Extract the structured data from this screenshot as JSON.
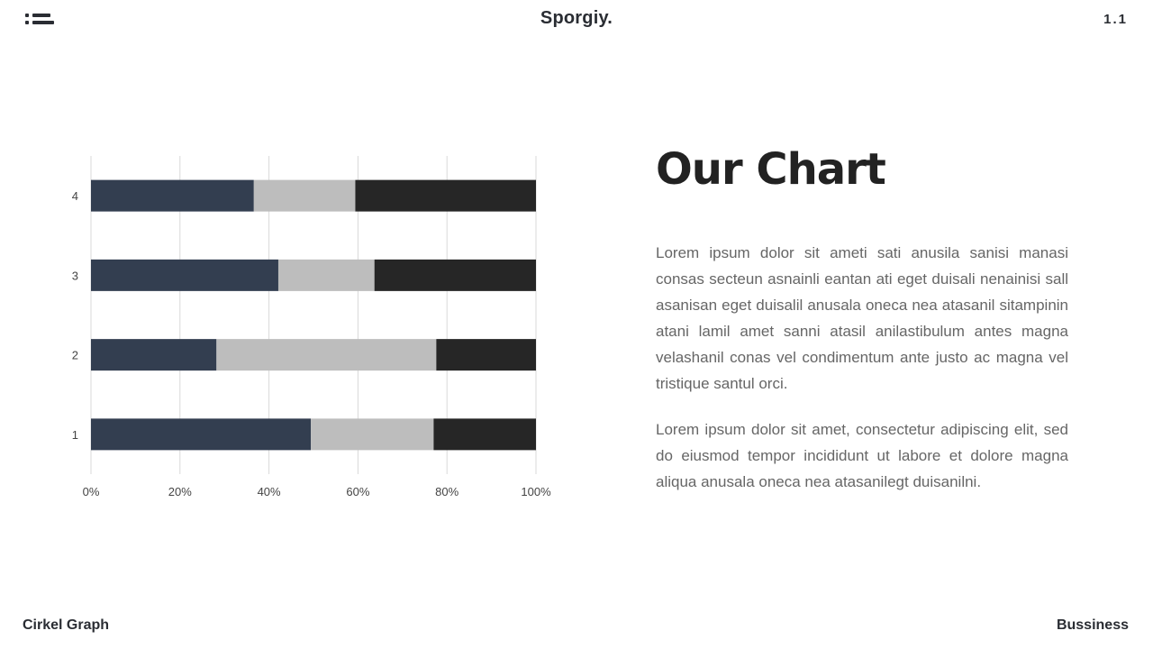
{
  "header": {
    "brand": "Sporgiy.",
    "page_number": "1.1"
  },
  "content": {
    "heading": "Our Chart",
    "paragraph_1": "Lorem ipsum dolor sit ameti sati anusila sanisi manasi consas secteun asnainli eantan ati eget duisali nenainisi sall asanisan eget duisalil anusala oneca nea atasanil sitampinin atani lamil amet sanni atasil anilastibulum antes magna velashanil conas vel condimentum ante justo ac magna vel tristique santul orci.",
    "paragraph_2": "Lorem ipsum dolor sit amet, consectetur adipiscing elit, sed do eiusmod tempor incididunt ut labore et dolore magna aliqua anusala oneca nea atasanilegt duisanilni."
  },
  "footer": {
    "left": "Cirkel Graph",
    "right": "Bussiness"
  },
  "icons": {
    "menu": "list-menu-icon"
  },
  "chart_data": {
    "type": "bar",
    "orientation": "horizontal",
    "stacked": "percent",
    "categories": [
      "1",
      "2",
      "3",
      "4"
    ],
    "series": [
      {
        "values": [
          49.4,
          28.2,
          42.1,
          36.6
        ],
        "color": "#333e50"
      },
      {
        "values": [
          27.6,
          49.4,
          21.6,
          22.8
        ],
        "color": "#bdbdbd"
      },
      {
        "values": [
          23.0,
          22.4,
          36.3,
          40.6
        ],
        "color": "#262626"
      }
    ],
    "x_ticks": [
      "0%",
      "20%",
      "40%",
      "60%",
      "80%",
      "100%"
    ],
    "xlim": [
      0,
      100
    ],
    "grid": true,
    "legend": "none"
  }
}
